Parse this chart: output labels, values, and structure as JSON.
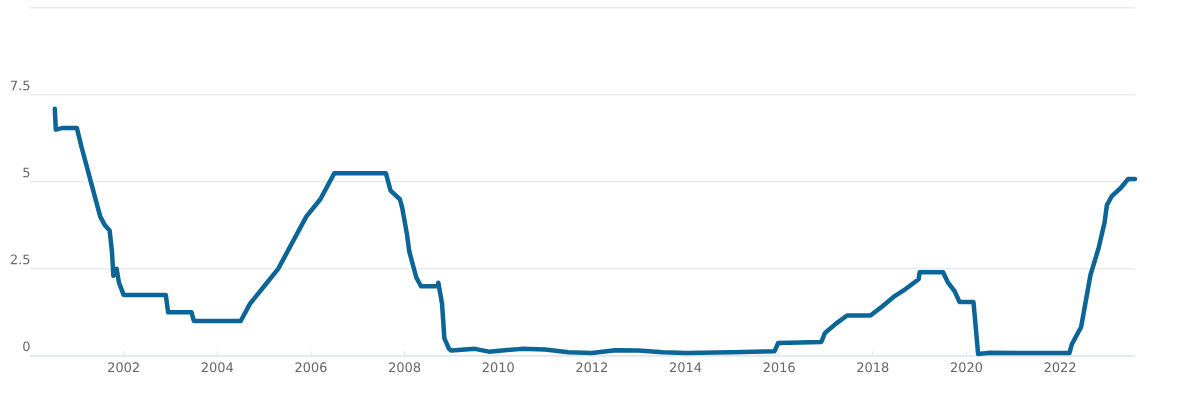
{
  "chart_data": {
    "type": "line",
    "color": "#0b6597",
    "grid": "y",
    "marker": "none",
    "line_style": "solid",
    "xlim": [
      2000,
      2023.6
    ],
    "ylim": [
      0,
      10
    ],
    "xticks": [
      2002,
      2004,
      2006,
      2008,
      2010,
      2012,
      2014,
      2016,
      2018,
      2020,
      2022
    ],
    "yticks": [
      0,
      2.5,
      5,
      7.5,
      {
        "value": 10,
        "label": null
      }
    ],
    "x": [
      2000.53,
      2000.55,
      2000.7,
      2001.0,
      2001.1,
      2001.2,
      2001.3,
      2001.4,
      2001.5,
      2001.6,
      2001.7,
      2001.75,
      2001.78,
      2001.85,
      2001.9,
      2002.0,
      2002.5,
      2002.9,
      2002.95,
      2003.45,
      2003.5,
      2004.0,
      2004.5,
      2004.7,
      2005.0,
      2005.3,
      2005.6,
      2005.9,
      2006.2,
      2006.5,
      2007.0,
      2007.6,
      2007.7,
      2007.9,
      2007.95,
      2008.05,
      2008.1,
      2008.25,
      2008.35,
      2008.7,
      2008.72,
      2008.8,
      2008.85,
      2008.95,
      2009.0,
      2009.5,
      2009.8,
      2010.5,
      2011.0,
      2011.5,
      2012.0,
      2012.5,
      2013.0,
      2013.5,
      2014.0,
      2015.0,
      2015.9,
      2015.98,
      2016.9,
      2016.98,
      2017.2,
      2017.45,
      2017.95,
      2018.2,
      2018.45,
      2018.7,
      2018.98,
      2019.0,
      2019.5,
      2019.6,
      2019.75,
      2019.85,
      2020.15,
      2020.25,
      2020.5,
      2021.5,
      2022.2,
      2022.25,
      2022.45,
      2022.55,
      2022.65,
      2022.82,
      2022.95,
      2023.0,
      2023.1,
      2023.3,
      2023.45,
      2023.6
    ],
    "values": [
      7.1,
      6.5,
      6.55,
      6.55,
      6.0,
      5.5,
      5.0,
      4.5,
      4.0,
      3.75,
      3.6,
      3.0,
      2.3,
      2.5,
      2.1,
      1.75,
      1.75,
      1.75,
      1.25,
      1.25,
      1.0,
      1.0,
      1.0,
      1.5,
      2.0,
      2.5,
      3.25,
      4.0,
      4.5,
      5.25,
      5.25,
      5.25,
      4.75,
      4.5,
      4.25,
      3.5,
      3.0,
      2.25,
      2.0,
      2.0,
      2.1,
      1.5,
      0.5,
      0.2,
      0.15,
      0.2,
      0.12,
      0.2,
      0.18,
      0.1,
      0.08,
      0.16,
      0.15,
      0.1,
      0.08,
      0.1,
      0.13,
      0.37,
      0.4,
      0.66,
      0.91,
      1.16,
      1.16,
      1.42,
      1.7,
      1.92,
      2.2,
      2.4,
      2.4,
      2.12,
      1.85,
      1.55,
      1.55,
      0.05,
      0.09,
      0.08,
      0.08,
      0.33,
      0.83,
      1.58,
      2.33,
      3.08,
      3.83,
      4.33,
      4.58,
      4.83,
      5.08,
      5.08
    ]
  }
}
